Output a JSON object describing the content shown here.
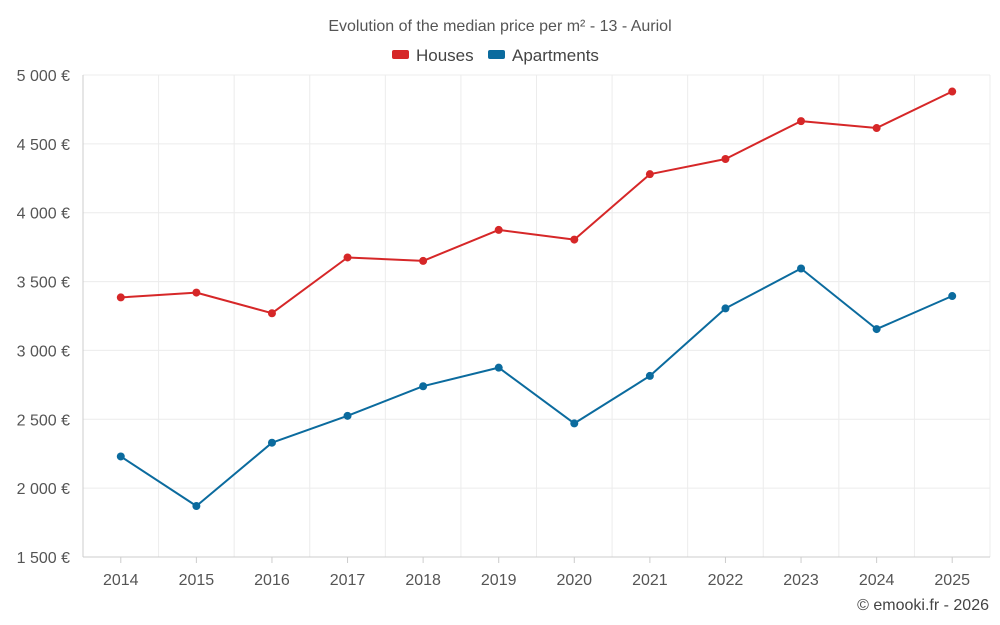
{
  "chart_data": {
    "type": "line",
    "title": "Evolution of the median price per m² - 13 - Auriol",
    "categories": [
      "2014",
      "2015",
      "2016",
      "2017",
      "2018",
      "2019",
      "2020",
      "2021",
      "2022",
      "2023",
      "2024",
      "2025"
    ],
    "series": [
      {
        "name": "Houses",
        "color": "#d62728",
        "values": [
          3385,
          3420,
          3270,
          3675,
          3650,
          3875,
          3805,
          4280,
          4390,
          4665,
          4615,
          4880
        ]
      },
      {
        "name": "Apartments",
        "color": "#0b6b9e",
        "values": [
          2230,
          1870,
          2330,
          2525,
          2740,
          2875,
          2470,
          2815,
          3305,
          3595,
          3155,
          3395
        ]
      }
    ],
    "ylim": [
      1500,
      5000
    ],
    "yticks": [
      1500,
      2000,
      2500,
      3000,
      3500,
      4000,
      4500,
      5000
    ],
    "ytick_labels": [
      "1 500 €",
      "2 000 €",
      "2 500 €",
      "3 000 €",
      "3 500 €",
      "4 000 €",
      "4 500 €",
      "5 000 €"
    ],
    "xlabel": "",
    "ylabel": "",
    "grid": true,
    "legend_position": "top-center"
  },
  "credit": "© emooki.fr - 2026"
}
